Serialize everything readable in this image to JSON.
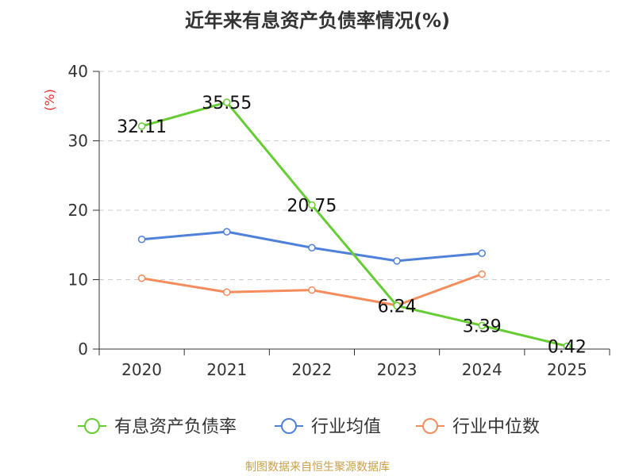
{
  "chart_data": {
    "type": "line",
    "title": "近年来有息资产负债率情况(%)",
    "ylabel": "(%)",
    "categories": [
      "2020",
      "2021",
      "2022",
      "2023",
      "2024",
      "2025"
    ],
    "ylim": [
      0,
      40
    ],
    "yticks": [
      0,
      10,
      20,
      30,
      40
    ],
    "grid": true,
    "legend_position": "bottom",
    "series": [
      {
        "name": "有息资产负债率",
        "color": "#66cc33",
        "values": [
          32.11,
          35.55,
          20.75,
          6.24,
          3.39,
          0.42
        ],
        "labels": [
          "32.11",
          "35.55",
          "20.75",
          "6.24",
          "3.39",
          "0.42"
        ]
      },
      {
        "name": "行业均值",
        "color": "#4f81d9",
        "values": [
          15.8,
          16.9,
          14.6,
          12.7,
          13.8,
          null
        ]
      },
      {
        "name": "行业中位数",
        "color": "#f48c5c",
        "values": [
          10.2,
          8.2,
          8.5,
          6.3,
          10.8,
          null
        ]
      }
    ]
  },
  "footer": {
    "source": "制图数据来自恒生聚源数据库"
  }
}
